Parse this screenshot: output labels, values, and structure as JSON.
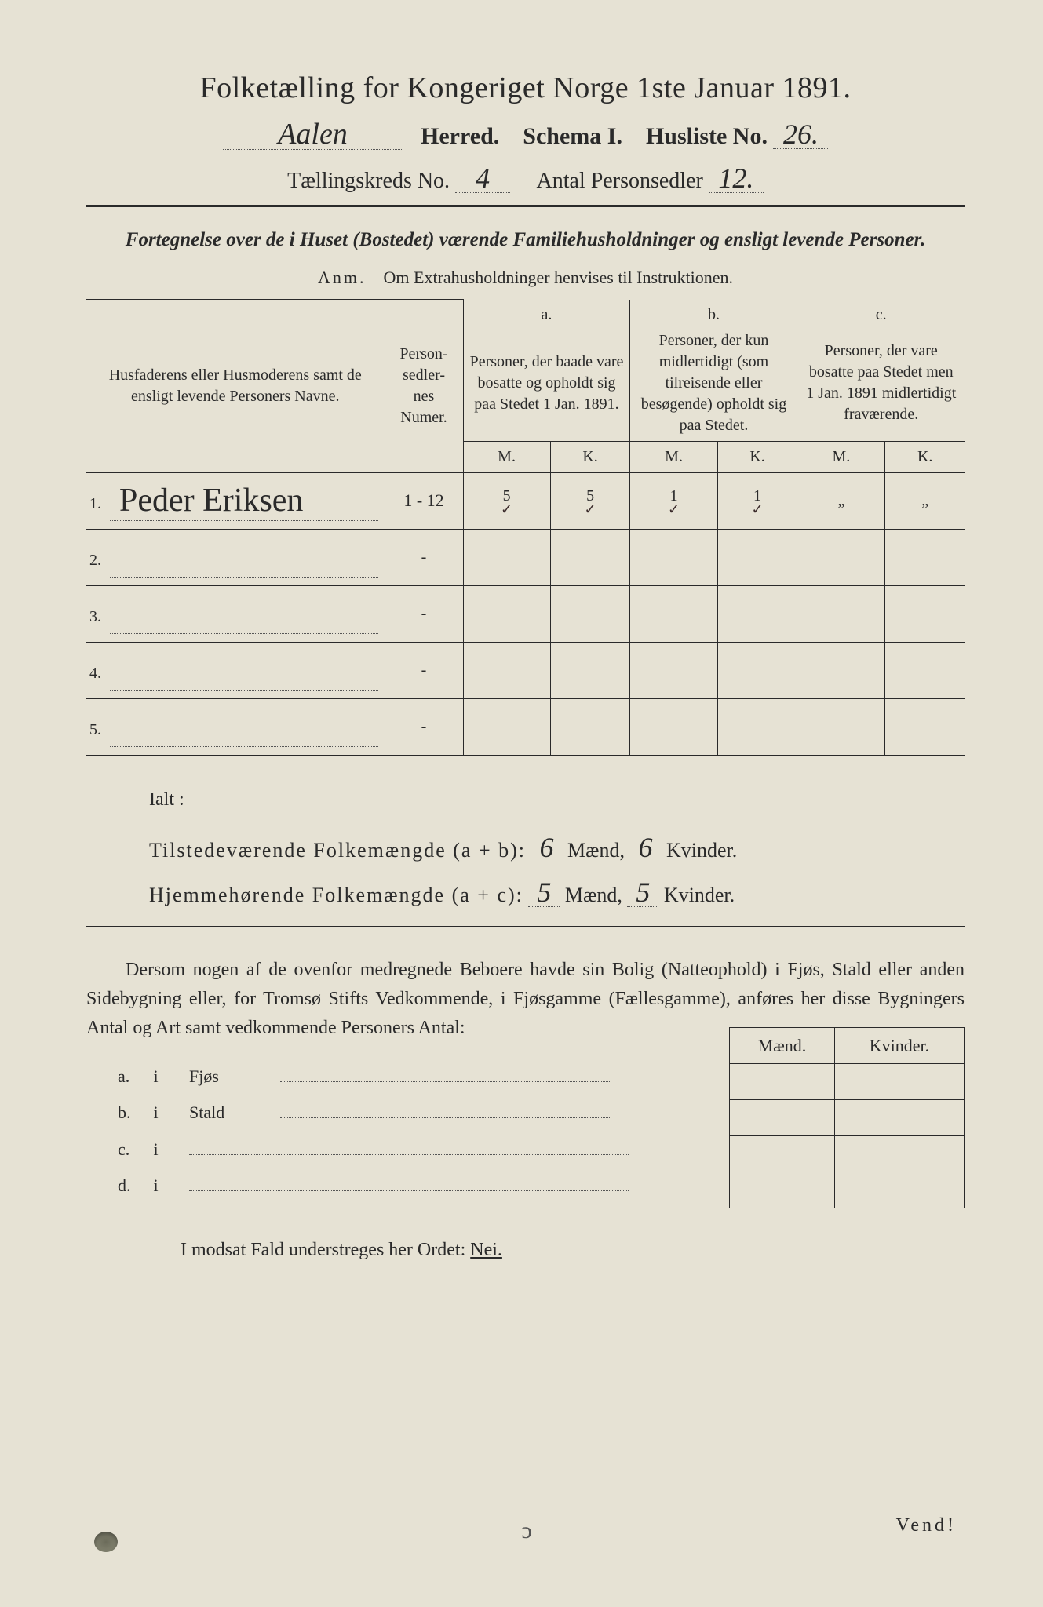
{
  "header": {
    "title": "Folketælling for Kongeriget Norge 1ste Januar 1891.",
    "herred_value": "Aalen",
    "herred_label": "Herred.",
    "schema_label": "Schema I.",
    "husliste_label": "Husliste No.",
    "husliste_value": "26.",
    "kreds_label": "Tællingskreds No.",
    "kreds_value": "4",
    "antal_label": "Antal Personsedler",
    "antal_value": "12."
  },
  "subtitle": "Fortegnelse over de i Huset (Bostedet) værende Familiehusholdninger og ensligt levende Personer.",
  "anm_label": "Anm.",
  "anm_text": "Om Extrahusholdninger henvises til Instruktionen.",
  "table": {
    "col_name": "Husfaderens eller Husmoderens samt de ensligt levende Personers Navne.",
    "col_numer": "Person-\nsedler-\nnes\nNumer.",
    "col_a_letter": "a.",
    "col_a": "Personer, der baade vare bosatte og opholdt sig paa Stedet 1 Jan. 1891.",
    "col_b_letter": "b.",
    "col_b": "Personer, der kun midlertidigt (som tilreisende eller besøgende) opholdt sig paa Stedet.",
    "col_c_letter": "c.",
    "col_c": "Personer, der vare bosatte paa Stedet men 1 Jan. 1891 midlertidigt fraværende.",
    "M": "M.",
    "K": "K.",
    "rows": [
      {
        "n": "1.",
        "name": "Peder Eriksen",
        "numer": "1 - 12",
        "aM": "5",
        "aK": "5",
        "bM": "1",
        "bK": "1",
        "cM": "„",
        "cK": "„"
      },
      {
        "n": "2.",
        "name": "",
        "numer": "-",
        "aM": "",
        "aK": "",
        "bM": "",
        "bK": "",
        "cM": "",
        "cK": ""
      },
      {
        "n": "3.",
        "name": "",
        "numer": "-",
        "aM": "",
        "aK": "",
        "bM": "",
        "bK": "",
        "cM": "",
        "cK": ""
      },
      {
        "n": "4.",
        "name": "",
        "numer": "-",
        "aM": "",
        "aK": "",
        "bM": "",
        "bK": "",
        "cM": "",
        "cK": ""
      },
      {
        "n": "5.",
        "name": "",
        "numer": "-",
        "aM": "",
        "aK": "",
        "bM": "",
        "bK": "",
        "cM": "",
        "cK": ""
      }
    ]
  },
  "totals": {
    "ialt": "Ialt :",
    "line1_label": "Tilstedeværende Folkemængde (a + b):",
    "line1_m": "6",
    "line1_k": "6",
    "line2_label": "Hjemmehørende Folkemængde (a + c):",
    "line2_m": "5",
    "line2_k": "5",
    "maend": "Mænd,",
    "kvinder": "Kvinder."
  },
  "para": "Dersom nogen af de ovenfor medregnede Beboere havde sin Bolig (Natteophold) i Fjøs, Stald eller anden Sidebygning eller, for Tromsø Stifts Vedkommende, i Fjøsgamme (Fællesgamme), anføres her disse Bygningers Antal og Art samt vedkommende Personers Antal:",
  "side": {
    "a": "a.",
    "b": "b.",
    "c": "c.",
    "d": "d.",
    "i": "i",
    "fjos": "Fjøs",
    "stald": "Stald",
    "maend": "Mænd.",
    "kvinder": "Kvinder."
  },
  "nei_line_prefix": "I modsat Fald understreges her Ordet:",
  "nei": "Nei.",
  "vend": "Vend!",
  "colors": {
    "paper": "#e6e2d4",
    "ink": "#2a2a2a",
    "dotted": "#555555"
  }
}
